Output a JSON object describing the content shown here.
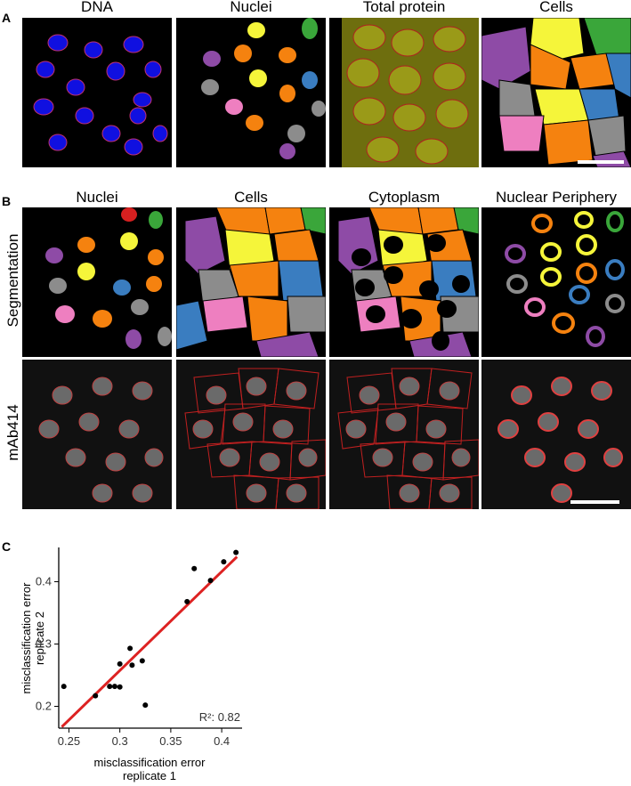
{
  "panel_a": {
    "label": "A",
    "titles": [
      "DNA",
      "Nuclei",
      "Total protein",
      "Cells"
    ]
  },
  "panel_b": {
    "label": "B",
    "titles": [
      "Nuclei",
      "Cells",
      "Cytoplasm",
      "Nuclear Periphery"
    ],
    "row_labels": [
      "Segmentation",
      "mAb414"
    ]
  },
  "panel_c": {
    "label": "C"
  },
  "colors": {
    "purple": "#8e4ba6",
    "yellow": "#f5f53a",
    "orange": "#f5820f",
    "gray": "#8c8c8c",
    "pink": "#ee7fc0",
    "blue": "#3a7dc0",
    "green": "#3aa63a",
    "red": "#d62020",
    "brown": "#9a5a2a",
    "dna_blue": "#1010e0",
    "protein_olive": "#8a8a10",
    "line_red": "#dd2222"
  },
  "chart_data": {
    "type": "scatter",
    "xlabel": [
      "misclassification error",
      "replicate 1"
    ],
    "ylabel": [
      "misclassification error",
      "replicate 2"
    ],
    "xlim": [
      0.24,
      0.42
    ],
    "ylim": [
      0.165,
      0.455
    ],
    "xticks": [
      0.25,
      0.3,
      0.35,
      0.4
    ],
    "yticks": [
      0.2,
      0.3,
      0.4
    ],
    "xtick_labels": [
      "0.25",
      "0.3",
      "0.35",
      "0.4"
    ],
    "ytick_labels": [
      "0.2",
      "0.3",
      "0.4"
    ],
    "annotation": "R²: 0.82",
    "points": [
      {
        "x": 0.245,
        "y": 0.232
      },
      {
        "x": 0.276,
        "y": 0.217
      },
      {
        "x": 0.29,
        "y": 0.232
      },
      {
        "x": 0.295,
        "y": 0.232
      },
      {
        "x": 0.3,
        "y": 0.231
      },
      {
        "x": 0.3,
        "y": 0.268
      },
      {
        "x": 0.31,
        "y": 0.293
      },
      {
        "x": 0.312,
        "y": 0.266
      },
      {
        "x": 0.322,
        "y": 0.273
      },
      {
        "x": 0.325,
        "y": 0.202
      },
      {
        "x": 0.366,
        "y": 0.368
      },
      {
        "x": 0.373,
        "y": 0.421
      },
      {
        "x": 0.389,
        "y": 0.402
      },
      {
        "x": 0.402,
        "y": 0.432
      },
      {
        "x": 0.414,
        "y": 0.447
      }
    ],
    "fit_line": {
      "x": [
        0.243,
        0.415
      ],
      "y": [
        0.167,
        0.44
      ]
    }
  }
}
